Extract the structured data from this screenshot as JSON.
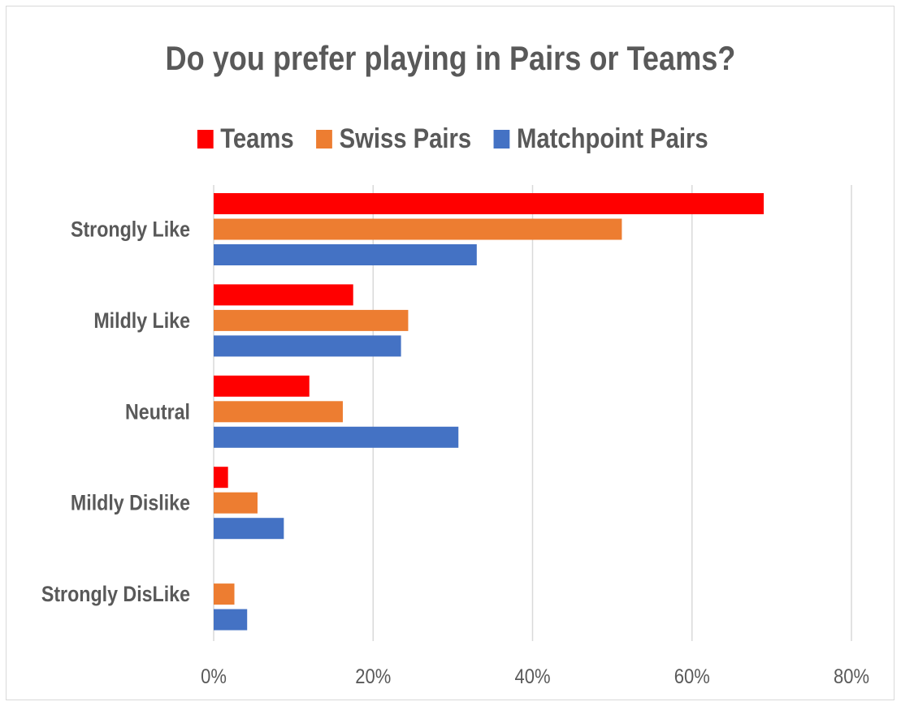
{
  "chart_data": {
    "type": "bar",
    "orientation": "horizontal",
    "title": "Do you prefer playing in Pairs or Teams?",
    "xlabel": "",
    "ylabel": "",
    "categories": [
      "Strongly Like",
      "Mildly Like",
      "Neutral",
      "Mildly Dislike",
      "Strongly DisLike"
    ],
    "series": [
      {
        "name": "Teams",
        "color": "#ff0000",
        "values": [
          0.69,
          0.175,
          0.12,
          0.018,
          0.0
        ]
      },
      {
        "name": "Swiss Pairs",
        "color": "#ed7d31",
        "values": [
          0.512,
          0.244,
          0.162,
          0.055,
          0.026
        ]
      },
      {
        "name": "Matchpoint Pairs",
        "color": "#4472c4",
        "values": [
          0.33,
          0.235,
          0.307,
          0.088,
          0.042
        ]
      }
    ],
    "xlim": [
      0,
      0.8
    ],
    "x_ticks": [
      0,
      0.2,
      0.4,
      0.6,
      0.8
    ],
    "x_tick_labels": [
      "0%",
      "20%",
      "40%",
      "60%",
      "80%"
    ],
    "grid": true,
    "legend_position": "top"
  }
}
